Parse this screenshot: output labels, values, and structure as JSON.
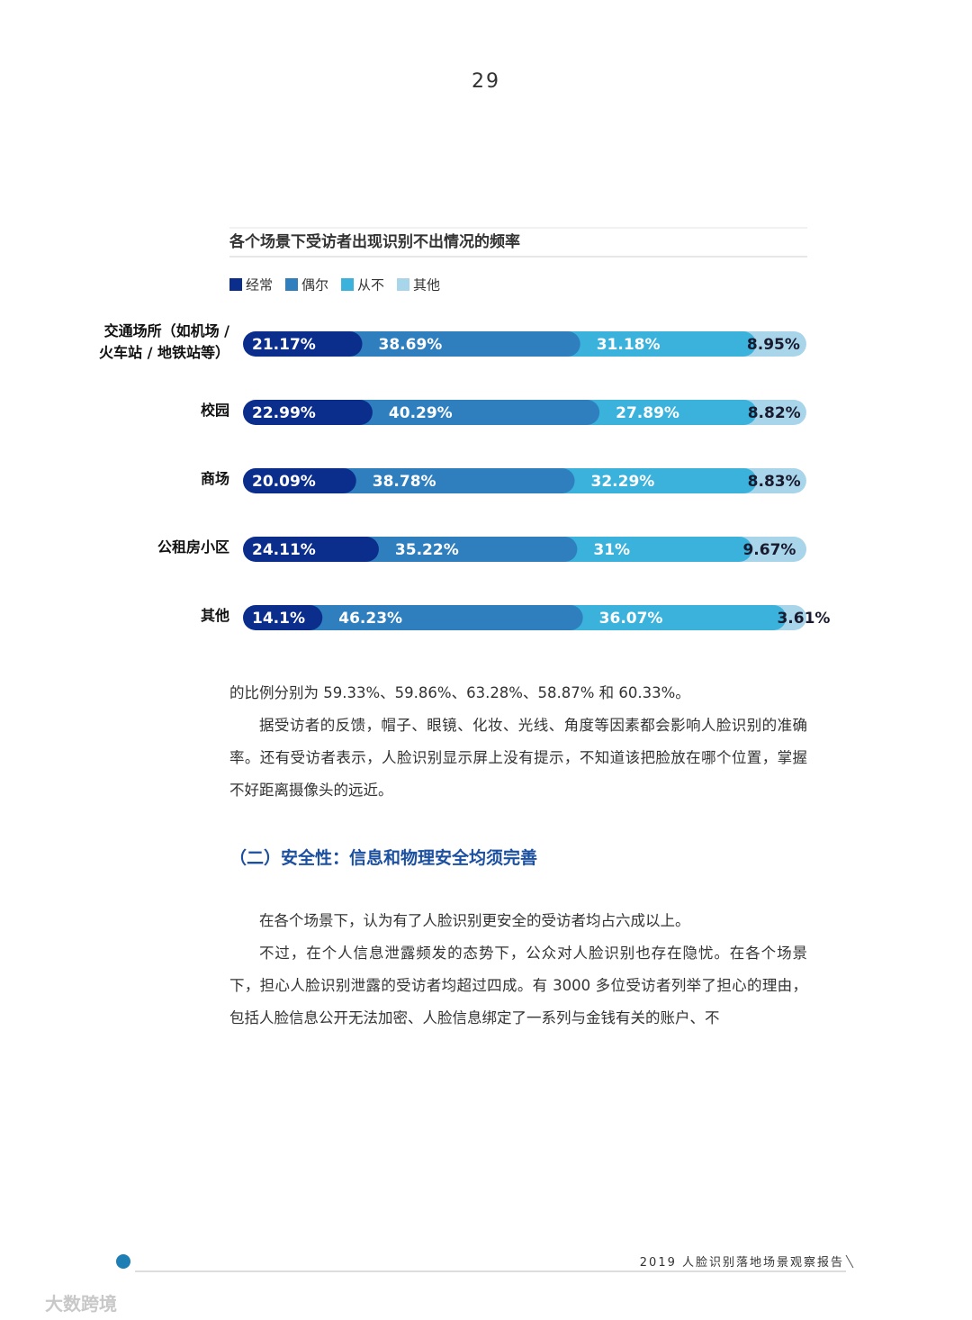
{
  "page_number": "29",
  "chart_data": {
    "type": "stacked-bar",
    "orientation": "horizontal",
    "title": "各个场景下受访者出现识别不出情况的频率",
    "categories": [
      "交通场所（如机场 / 火车站 / 地铁站等）",
      "校园",
      "商场",
      "公租房小区",
      "其他"
    ],
    "xlim": [
      0,
      100
    ],
    "series": [
      {
        "name": "经常",
        "color": "#0b2d8c",
        "values": [
          21.17,
          22.99,
          20.09,
          24.11,
          14.1
        ],
        "value_labels": [
          "21.17%",
          "22.99%",
          "20.09%",
          "24.11%",
          "14.1%"
        ]
      },
      {
        "name": "偶尔",
        "color": "#2f7fbf",
        "values": [
          38.69,
          40.29,
          38.78,
          35.22,
          46.23
        ],
        "value_labels": [
          "38.69%",
          "40.29%",
          "38.78%",
          "35.22%",
          "46.23%"
        ]
      },
      {
        "name": "从不",
        "color": "#3bb2dc",
        "values": [
          31.18,
          27.89,
          32.29,
          31,
          36.07
        ],
        "value_labels": [
          "31.18%",
          "27.89%",
          "32.29%",
          "31%",
          "36.07%"
        ]
      },
      {
        "name": "其他",
        "color": "#a8d5ea",
        "values": [
          8.95,
          8.82,
          8.83,
          9.67,
          3.61
        ],
        "value_labels": [
          "8.95%",
          "8.82%",
          "8.83%",
          "9.67%",
          "3.61%"
        ]
      }
    ]
  },
  "body": {
    "paragraphs_1": [
      "的比例分别为 59.33%、59.86%、63.28%、58.87% 和 60.33%。",
      "据受访者的反馈，帽子、眼镜、化妆、光线、角度等因素都会影响人脸识别的准确率。还有受访者表示，人脸识别显示屏上没有提示，不知道该把脸放在哪个位置，掌握不好距离摄像头的远近。"
    ],
    "heading": "（二）安全性：信息和物理安全均须完善",
    "paragraphs_2": [
      "在各个场景下，认为有了人脸识别更安全的受访者均占六成以上。",
      "不过，在个人信息泄露频发的态势下，公众对人脸识别也存在隐忧。在各个场景下，担心人脸识别泄露的受访者均超过四成。有 3000 多位受访者列举了担心的理由，包括人脸信息公开无法加密、人脸信息绑定了一系列与金钱有关的账户、不"
    ]
  },
  "footer": {
    "report_title": "2019 人脸识别落地场景观察报告",
    "watermark": "大数跨境"
  }
}
